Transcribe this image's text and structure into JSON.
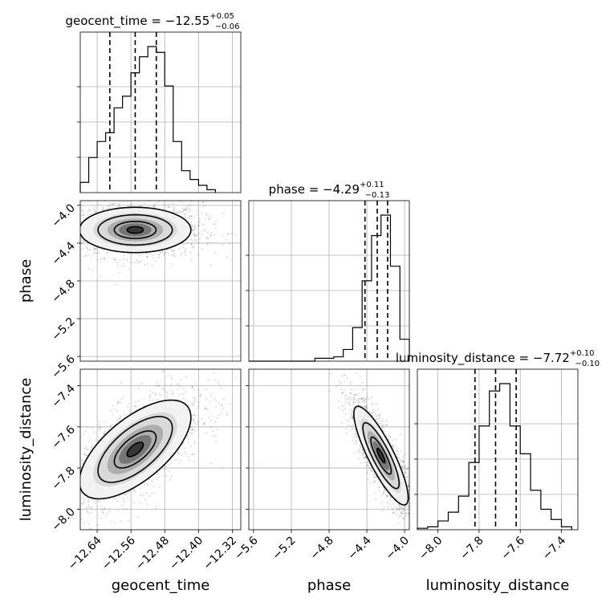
{
  "chart_data": {
    "type": "corner",
    "grid": true,
    "parameters": [
      {
        "key": "geocent_time",
        "label": "geocent_time",
        "title_text": "geocent_time = −12.55",
        "title_plus": "+0.05",
        "title_minus": "−0.06",
        "median": -12.55,
        "err_plus": 0.05,
        "err_minus": 0.06,
        "quantiles": [
          -12.61,
          -12.55,
          -12.5
        ],
        "range": [
          -12.68,
          -12.3
        ],
        "ticks": [
          -12.64,
          -12.56,
          -12.48,
          -12.4,
          -12.32
        ],
        "tick_labels": [
          "−12.64",
          "−12.56",
          "−12.48",
          "−12.40",
          "−12.32"
        ]
      },
      {
        "key": "phase",
        "label": "phase",
        "title_text": "phase = −4.29",
        "title_plus": "+0.11",
        "title_minus": "−0.13",
        "median": -4.29,
        "err_plus": 0.11,
        "err_minus": 0.13,
        "quantiles": [
          -4.42,
          -4.29,
          -4.18
        ],
        "range": [
          -5.65,
          -3.95
        ],
        "ticks": [
          -4.0,
          -4.4,
          -4.8,
          -5.2,
          -5.6
        ],
        "tick_labels": [
          "−4.0",
          "−4.4",
          "−4.8",
          "−5.2",
          "−5.6"
        ]
      },
      {
        "key": "luminosity_distance",
        "label": "luminosity_distance",
        "title_text": "luminosity_distance = −7.72",
        "title_plus": "+0.10",
        "title_minus": "−0.10",
        "median": -7.72,
        "err_plus": 0.1,
        "err_minus": 0.1,
        "quantiles": [
          -7.82,
          -7.72,
          -7.62
        ],
        "range": [
          -8.1,
          -7.32
        ],
        "ticks": [
          -8.0,
          -7.8,
          -7.6,
          -7.4
        ],
        "tick_labels": [
          "−8.0",
          "−7.8",
          "−7.6",
          "−7.4"
        ]
      }
    ],
    "histograms_1d": {
      "geocent_time": {
        "bin_edges": [
          -12.68,
          -12.66,
          -12.64,
          -12.62,
          -12.6,
          -12.58,
          -12.56,
          -12.54,
          -12.52,
          -12.5,
          -12.48,
          -12.46,
          -12.44,
          -12.42,
          -12.4,
          -12.38,
          -12.36
        ],
        "counts": [
          0.07,
          0.24,
          0.35,
          0.41,
          0.58,
          0.66,
          0.82,
          0.93,
          1.0,
          0.96,
          0.73,
          0.35,
          0.15,
          0.09,
          0.05,
          0.02
        ]
      },
      "phase": {
        "bin_edges": [
          -5.65,
          -5.55,
          -5.45,
          -5.35,
          -5.25,
          -5.15,
          -5.05,
          -4.95,
          -4.85,
          -4.75,
          -4.65,
          -4.55,
          -4.45,
          -4.35,
          -4.25,
          -4.15,
          -4.05,
          -3.95
        ],
        "counts": [
          0.0,
          0.0,
          0.0,
          0.0,
          0.0,
          0.0,
          0.0,
          0.02,
          0.02,
          0.03,
          0.08,
          0.23,
          0.55,
          0.86,
          1.0,
          0.65,
          0.15
        ]
      },
      "luminosity_distance": {
        "bin_edges": [
          -8.1,
          -8.05,
          -8.0,
          -7.95,
          -7.9,
          -7.85,
          -7.8,
          -7.75,
          -7.7,
          -7.65,
          -7.6,
          -7.55,
          -7.5,
          -7.45,
          -7.4,
          -7.35
        ],
        "counts": [
          0.01,
          0.02,
          0.06,
          0.12,
          0.23,
          0.46,
          0.71,
          0.95,
          1.0,
          0.71,
          0.52,
          0.27,
          0.14,
          0.07,
          0.02
        ]
      }
    },
    "pairs_2d": [
      {
        "x": "geocent_time",
        "y": "phase",
        "center_x": -12.55,
        "center_y": -4.26,
        "sd_x": 0.055,
        "sd_y": 0.1,
        "correlation": 0.0
      },
      {
        "x": "geocent_time",
        "y": "luminosity_distance",
        "center_x": -12.55,
        "center_y": -7.71,
        "sd_x": 0.055,
        "sd_y": 0.1,
        "correlation": 0.65
      },
      {
        "x": "phase",
        "y": "luminosity_distance",
        "center_x": -4.25,
        "center_y": -7.74,
        "sd_x": 0.12,
        "sd_y": 0.1,
        "correlation": -0.85
      }
    ]
  }
}
